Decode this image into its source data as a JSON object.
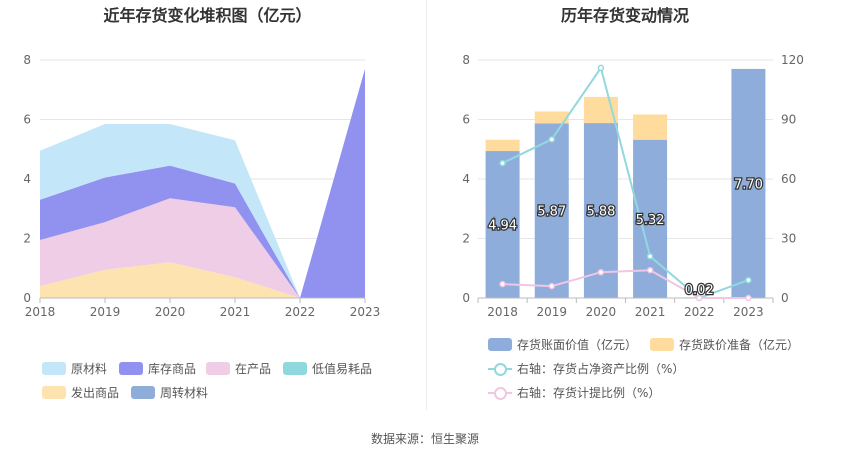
{
  "left_title": "近年存货变化堆积图（亿元）",
  "right_title": "历年存货变动情况",
  "source": "数据来源：恒生聚源",
  "chart_data": [
    {
      "type": "area",
      "stacked": true,
      "x": [
        "2018",
        "2019",
        "2020",
        "2021",
        "2022",
        "2023"
      ],
      "ylim": [
        0,
        8
      ],
      "yticks": [
        "0",
        "2",
        "4",
        "6",
        "8"
      ],
      "grid": true,
      "legend_position": "bottom",
      "series": [
        {
          "name": "发出商品",
          "color": "#fde3b0",
          "values": [
            0.4,
            0.95,
            1.2,
            0.7,
            0,
            0
          ]
        },
        {
          "name": "在产品",
          "color": "#efcde6",
          "values": [
            1.55,
            1.6,
            2.15,
            2.35,
            0,
            0
          ]
        },
        {
          "name": "库存商品",
          "color": "#9191f0",
          "values": [
            1.35,
            1.5,
            1.1,
            0.8,
            0,
            7.7
          ]
        },
        {
          "name": "原材料",
          "color": "#c3e7f9",
          "values": [
            1.65,
            1.8,
            1.4,
            1.45,
            0,
            0
          ]
        },
        {
          "name": "低值易耗品",
          "color": "#8fd9de",
          "values": [
            0,
            0,
            0,
            0,
            0,
            0
          ]
        },
        {
          "name": "周转材料",
          "color": "#8fadd9",
          "values": [
            0,
            0,
            0,
            0,
            0,
            0
          ]
        }
      ],
      "legend_order": [
        "原材料",
        "库存商品",
        "在产品",
        "低值易耗品",
        "发出商品",
        "周转材料"
      ]
    },
    {
      "type": "bar",
      "x": [
        "2018",
        "2019",
        "2020",
        "2021",
        "2022",
        "2023"
      ],
      "ylim": [
        0,
        8
      ],
      "yticks": [
        "0",
        "2",
        "4",
        "6",
        "8"
      ],
      "y2lim": [
        0,
        120
      ],
      "y2ticks": [
        "0",
        "30",
        "60",
        "90",
        "120"
      ],
      "grid": true,
      "legend_position": "bottom",
      "series": [
        {
          "name": "存货账面价值（亿元）",
          "kind": "bar",
          "axis": "left",
          "color": "#8eaddb",
          "values": [
            4.94,
            5.87,
            5.88,
            5.32,
            0.02,
            7.7
          ],
          "labels": [
            "4.94",
            "5.87",
            "5.88",
            "5.32",
            "0.02",
            "7.70"
          ]
        },
        {
          "name": "存货跌价准备（亿元）",
          "kind": "bar-stacked",
          "axis": "left",
          "color": "#ffdc9d",
          "values": [
            0.38,
            0.4,
            0.88,
            0.85,
            0,
            0
          ]
        },
        {
          "name": "右轴：存货占净资产比例（%）",
          "kind": "line",
          "axis": "right",
          "color": "#91d8df",
          "values": [
            68,
            80,
            116,
            21,
            0,
            9
          ]
        },
        {
          "name": "右轴：存货计提比例（%）",
          "kind": "line",
          "axis": "right",
          "color": "#f0c6e3",
          "values": [
            7,
            6,
            13,
            14,
            0,
            0
          ]
        }
      ]
    }
  ]
}
